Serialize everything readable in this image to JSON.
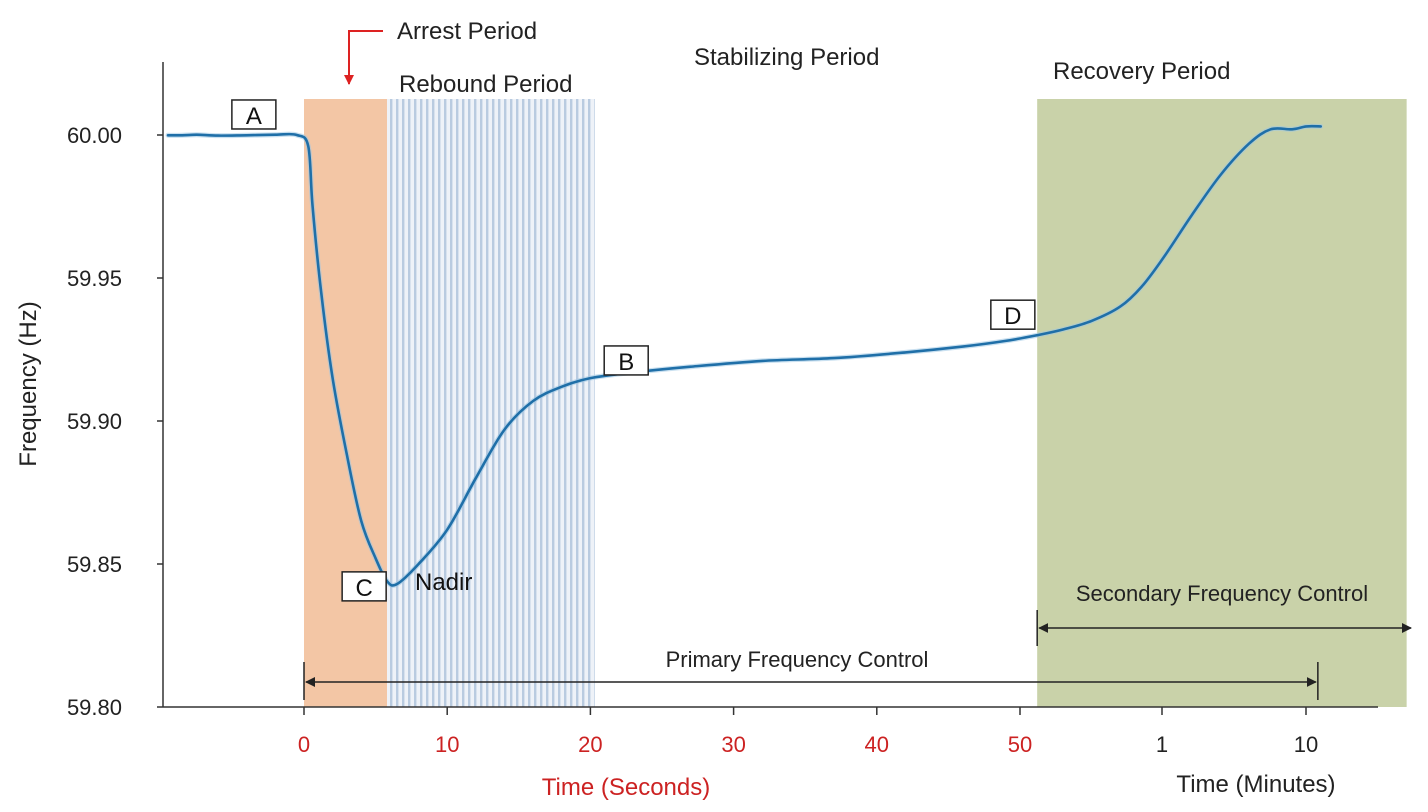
{
  "chart_data": {
    "type": "line",
    "title": "",
    "ylabel": "Frequency (Hz)",
    "xlabel_seconds": "Time (Seconds)",
    "xlabel_minutes": "Time (Minutes)",
    "ylim": [
      59.8,
      60.0
    ],
    "y_ticks": [
      "60.00",
      "59.95",
      "59.90",
      "59.85",
      "59.80"
    ],
    "y_tick_values": [
      60.0,
      59.95,
      59.9,
      59.85,
      59.8
    ],
    "x_ticks_seconds": [
      "0",
      "10",
      "20",
      "30",
      "40",
      "50"
    ],
    "x_tick_seconds_values": [
      0,
      10,
      20,
      30,
      40,
      50
    ],
    "x_ticks_minutes": [
      "1",
      "10"
    ],
    "colors": {
      "line": "#1f6fa8",
      "arrest_fill": "#f3c6a5",
      "rebound_stripe": "#b9cbe0",
      "recovery_fill": "#c9d2a9",
      "seconds_tick": "#cc2222",
      "arrow_red": "#dd2222"
    },
    "series": [
      {
        "name": "",
        "points": [
          [
            -9.5,
            59.9999
          ],
          [
            -8.5,
            59.9999
          ],
          [
            -7.5,
            60.0001
          ],
          [
            -6,
            59.9998
          ],
          [
            -4,
            59.9999
          ],
          [
            -2,
            60.0001
          ],
          [
            -0.5,
            60.0
          ],
          [
            0.3,
            59.996
          ],
          [
            0.6,
            59.975
          ],
          [
            1.2,
            59.945
          ],
          [
            2,
            59.915
          ],
          [
            3,
            59.888
          ],
          [
            4,
            59.865
          ],
          [
            5,
            59.852
          ],
          [
            5.8,
            59.844
          ],
          [
            6.5,
            59.843
          ],
          [
            8,
            59.85
          ],
          [
            10,
            59.862
          ],
          [
            12,
            59.88
          ],
          [
            14,
            59.897
          ],
          [
            16,
            59.907
          ],
          [
            18,
            59.912
          ],
          [
            20,
            59.915
          ],
          [
            23,
            59.917
          ],
          [
            27,
            59.919
          ],
          [
            32,
            59.921
          ],
          [
            37,
            59.922
          ],
          [
            42,
            59.924
          ],
          [
            46,
            59.926
          ],
          [
            49,
            59.928
          ],
          [
            51.2,
            59.93
          ],
          [
            53,
            59.932
          ],
          [
            55,
            59.935
          ],
          [
            57,
            59.94
          ],
          [
            58.5,
            59.947
          ],
          [
            60,
            59.957
          ],
          [
            62,
            59.972
          ],
          [
            64,
            59.986
          ],
          [
            66,
            59.997
          ],
          [
            67.5,
            60.002
          ],
          [
            69,
            60.002
          ],
          [
            70,
            60.003
          ],
          [
            71,
            60.003
          ]
        ]
      }
    ],
    "periods": {
      "arrest": "Arrest Period",
      "rebound": "Rebound Period",
      "stabilizing": "Stabilizing Period",
      "recovery": "Recovery Period"
    },
    "period_spans_seconds": {
      "arrest": [
        0,
        5.8
      ],
      "rebound": [
        5.8,
        20.3
      ],
      "recovery": [
        51.2,
        77
      ]
    },
    "points": [
      {
        "label": "A",
        "x": -3.5,
        "y": 60.007
      },
      {
        "label": "B",
        "x": 22.5,
        "y": 59.921
      },
      {
        "label": "C",
        "x": 4.2,
        "y": 59.842
      },
      {
        "label": "D",
        "x": 49.5,
        "y": 59.937
      }
    ],
    "nadir_label": "Nadir",
    "controls": {
      "primary": "Primary Frequency Control",
      "secondary": "Secondary Frequency Control"
    },
    "control_spans_seconds": {
      "primary": [
        0,
        70.8
      ],
      "secondary": [
        51.2,
        77
      ]
    },
    "grid": false,
    "legend": "none"
  }
}
